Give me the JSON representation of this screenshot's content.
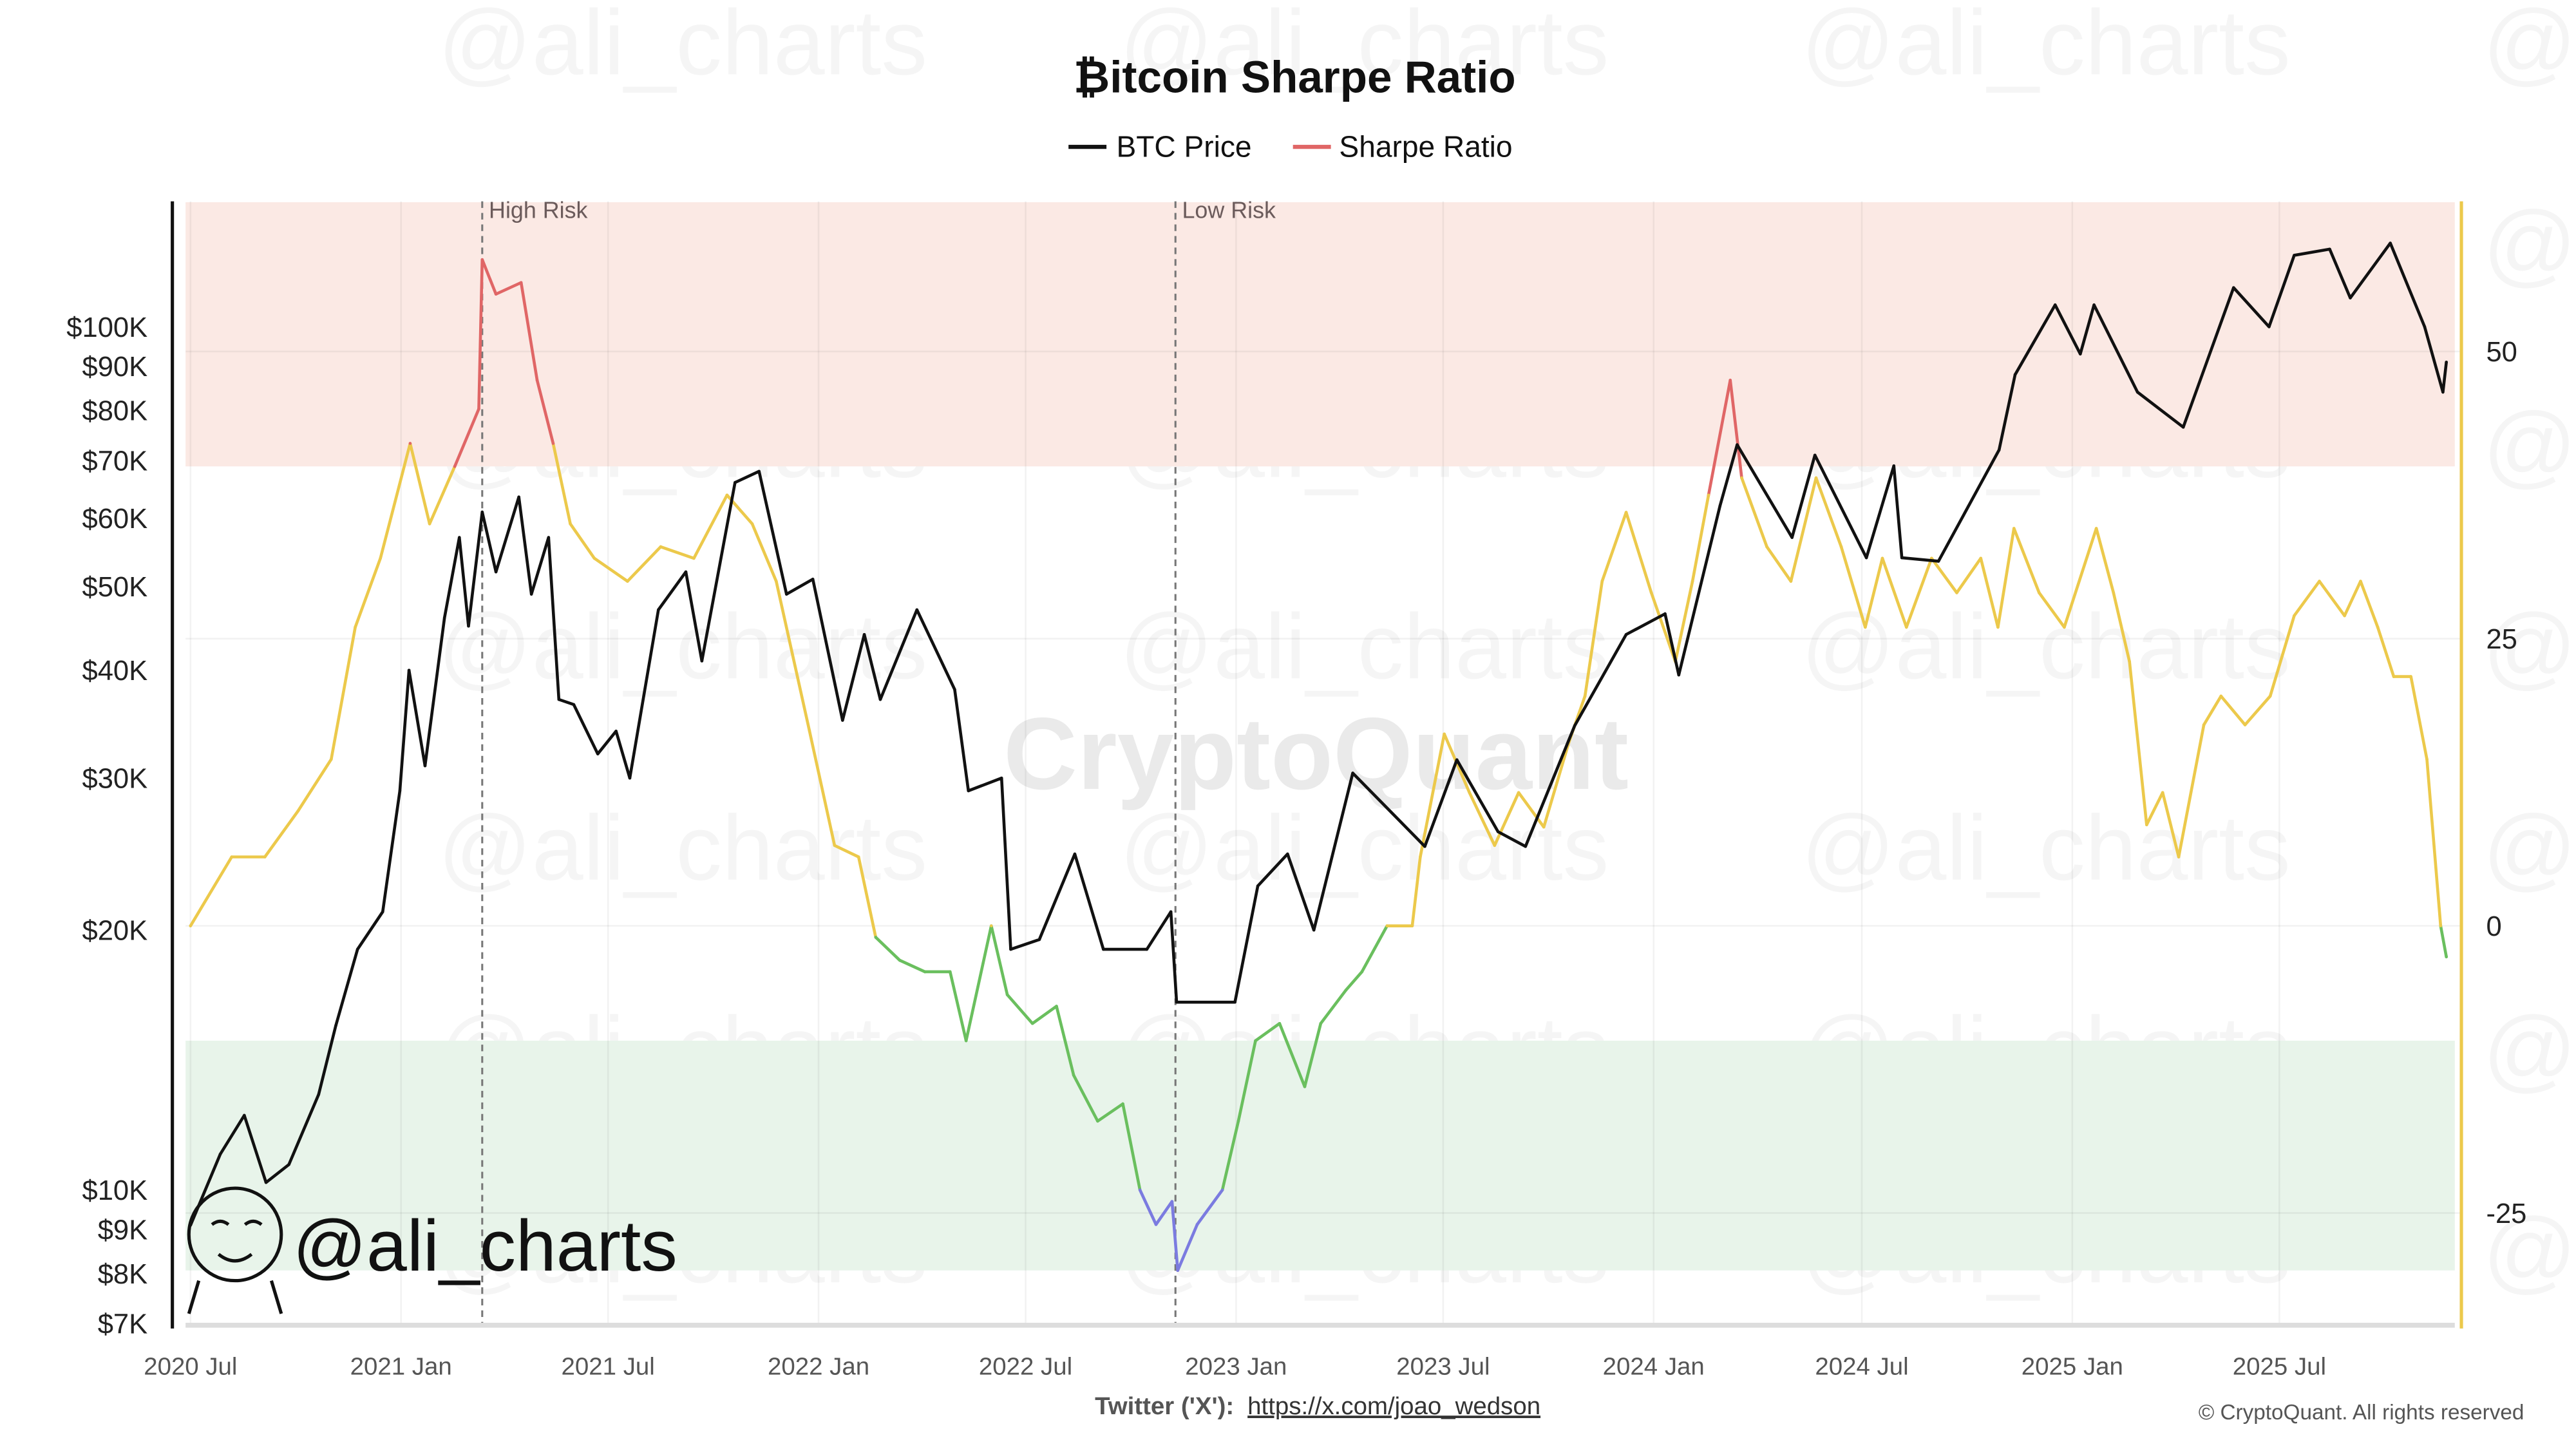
{
  "chart_data": {
    "type": "line",
    "title": "₿itcoin Sharpe Ratio",
    "legend": {
      "placement": "top-center",
      "items": [
        {
          "name": "BTC Price",
          "color": "#111111"
        },
        {
          "name": "Sharpe Ratio",
          "color": "#e06666"
        }
      ]
    },
    "x_ticks": [
      "2020 Jul",
      "2021 Jan",
      "2021 Jul",
      "2022 Jan",
      "2022 Jul",
      "2023 Jan",
      "2023 Jul",
      "2024 Jan",
      "2024 Jul",
      "2025 Jan",
      "2025 Jul"
    ],
    "x_tick_dates": [
      "2020-07-01",
      "2021-01-01",
      "2021-07-01",
      "2022-01-01",
      "2022-07-01",
      "2023-01-01",
      "2023-07-01",
      "2024-01-01",
      "2024-07-01",
      "2025-01-01",
      "2025-07-01"
    ],
    "left_axis": {
      "scale": "log",
      "range": [
        7000,
        140000
      ],
      "ticks": [
        100000,
        90000,
        80000,
        70000,
        60000,
        50000,
        40000,
        30000,
        20000,
        10000,
        9000,
        8000,
        7000
      ],
      "tick_labels": [
        "$100K",
        "$90K",
        "$80K",
        "$70K",
        "$60K",
        "$50K",
        "$40K",
        "$30K",
        "$20K",
        "$10K",
        "$9K",
        "$8K",
        "$7K"
      ]
    },
    "right_axis": {
      "scale": "linear",
      "range": [
        -35,
        63
      ],
      "ticks": [
        50,
        25,
        0,
        -25
      ],
      "tick_labels": [
        "50",
        "25",
        "0",
        "-25"
      ]
    },
    "zones": [
      {
        "kind": "high-risk",
        "from": 40,
        "to": 63,
        "color": "#fbe9e4"
      },
      {
        "kind": "low-risk",
        "from": -30,
        "to": -10,
        "color": "#e8f4ea"
      }
    ],
    "annotations": [
      {
        "label": "High Risk",
        "date": "2021-03-13"
      },
      {
        "label": "Low Risk",
        "date": "2022-11-09"
      }
    ],
    "sharpe_colors": {
      "high": "#e06666",
      "mid": "#ecc94b",
      "low": "#6abf5e",
      "extreme_low": "#7b7be0"
    },
    "series": [
      {
        "name": "BTC Price",
        "axis": "left",
        "points": [
          [
            "2020-07-01",
            9100
          ],
          [
            "2020-07-27",
            11000
          ],
          [
            "2020-08-17",
            12200
          ],
          [
            "2020-09-05",
            10200
          ],
          [
            "2020-09-25",
            10700
          ],
          [
            "2020-10-21",
            12900
          ],
          [
            "2020-11-05",
            15500
          ],
          [
            "2020-11-24",
            19000
          ],
          [
            "2020-12-16",
            21000
          ],
          [
            "2020-12-31",
            29000
          ],
          [
            "2021-01-08",
            40000
          ],
          [
            "2021-01-22",
            31000
          ],
          [
            "2021-02-08",
            46000
          ],
          [
            "2021-02-21",
            57000
          ],
          [
            "2021-03-01",
            45000
          ],
          [
            "2021-03-13",
            61000
          ],
          [
            "2021-03-25",
            52000
          ],
          [
            "2021-04-14",
            63500
          ],
          [
            "2021-04-25",
            49000
          ],
          [
            "2021-05-10",
            57000
          ],
          [
            "2021-05-19",
            37000
          ],
          [
            "2021-06-01",
            36500
          ],
          [
            "2021-06-22",
            32000
          ],
          [
            "2021-07-08",
            34000
          ],
          [
            "2021-07-20",
            30000
          ],
          [
            "2021-08-14",
            47000
          ],
          [
            "2021-09-07",
            52000
          ],
          [
            "2021-09-21",
            41000
          ],
          [
            "2021-10-20",
            66000
          ],
          [
            "2021-11-10",
            68000
          ],
          [
            "2021-12-04",
            49000
          ],
          [
            "2021-12-27",
            51000
          ],
          [
            "2022-01-22",
            35000
          ],
          [
            "2022-02-10",
            44000
          ],
          [
            "2022-02-24",
            37000
          ],
          [
            "2022-03-28",
            47000
          ],
          [
            "2022-04-30",
            38000
          ],
          [
            "2022-05-12",
            29000
          ],
          [
            "2022-06-10",
            30000
          ],
          [
            "2022-06-18",
            19000
          ],
          [
            "2022-07-13",
            19500
          ],
          [
            "2022-08-13",
            24500
          ],
          [
            "2022-09-07",
            19000
          ],
          [
            "2022-10-15",
            19000
          ],
          [
            "2022-11-05",
            21000
          ],
          [
            "2022-11-10",
            16500
          ],
          [
            "2022-12-31",
            16500
          ],
          [
            "2023-01-20",
            22500
          ],
          [
            "2023-02-15",
            24500
          ],
          [
            "2023-03-10",
            20000
          ],
          [
            "2023-04-13",
            30400
          ],
          [
            "2023-06-15",
            25000
          ],
          [
            "2023-07-13",
            31500
          ],
          [
            "2023-08-18",
            26000
          ],
          [
            "2023-09-11",
            25000
          ],
          [
            "2023-10-24",
            34500
          ],
          [
            "2023-12-08",
            44000
          ],
          [
            "2024-01-11",
            46500
          ],
          [
            "2024-01-23",
            39500
          ],
          [
            "2024-02-28",
            62000
          ],
          [
            "2024-03-14",
            73000
          ],
          [
            "2024-05-01",
            57000
          ],
          [
            "2024-05-21",
            71000
          ],
          [
            "2024-07-05",
            54000
          ],
          [
            "2024-07-29",
            69000
          ],
          [
            "2024-08-05",
            54000
          ],
          [
            "2024-09-06",
            53500
          ],
          [
            "2024-10-29",
            72000
          ],
          [
            "2024-11-12",
            88000
          ],
          [
            "2024-12-17",
            106000
          ],
          [
            "2025-01-08",
            93000
          ],
          [
            "2025-01-20",
            106000
          ],
          [
            "2025-02-27",
            84000
          ],
          [
            "2025-04-08",
            76500
          ],
          [
            "2025-05-22",
            111000
          ],
          [
            "2025-06-22",
            100000
          ],
          [
            "2025-07-14",
            121000
          ],
          [
            "2025-08-14",
            123000
          ],
          [
            "2025-09-01",
            108000
          ],
          [
            "2025-10-06",
            125000
          ],
          [
            "2025-11-05",
            100000
          ],
          [
            "2025-11-21",
            84000
          ],
          [
            "2025-11-24",
            91000
          ]
        ]
      },
      {
        "name": "Sharpe Ratio",
        "axis": "right",
        "points": [
          [
            "2020-07-01",
            0
          ],
          [
            "2020-08-06",
            6
          ],
          [
            "2020-09-04",
            6
          ],
          [
            "2020-10-03",
            10
          ],
          [
            "2020-11-01",
            14.5
          ],
          [
            "2020-11-22",
            26
          ],
          [
            "2020-12-14",
            32
          ],
          [
            "2021-01-09",
            42
          ],
          [
            "2021-01-26",
            35
          ],
          [
            "2021-02-17",
            40
          ],
          [
            "2021-03-10",
            45
          ],
          [
            "2021-03-13",
            58
          ],
          [
            "2021-03-25",
            55
          ],
          [
            "2021-04-16",
            56
          ],
          [
            "2021-04-30",
            47.5
          ],
          [
            "2021-05-14",
            42
          ],
          [
            "2021-05-29",
            35
          ],
          [
            "2021-06-19",
            32
          ],
          [
            "2021-07-18",
            30
          ],
          [
            "2021-08-16",
            33
          ],
          [
            "2021-09-14",
            32
          ],
          [
            "2021-10-13",
            37.5
          ],
          [
            "2021-11-04",
            35
          ],
          [
            "2021-11-25",
            30
          ],
          [
            "2021-12-24",
            17
          ],
          [
            "2022-01-15",
            7
          ],
          [
            "2022-02-05",
            6
          ],
          [
            "2022-02-20",
            -1
          ],
          [
            "2022-03-13",
            -3
          ],
          [
            "2022-04-04",
            -4
          ],
          [
            "2022-04-26",
            -4
          ],
          [
            "2022-05-10",
            -10
          ],
          [
            "2022-06-01",
            0
          ],
          [
            "2022-06-15",
            -6
          ],
          [
            "2022-07-07",
            -8.5
          ],
          [
            "2022-07-28",
            -7
          ],
          [
            "2022-08-12",
            -13
          ],
          [
            "2022-09-02",
            -17
          ],
          [
            "2022-09-24",
            -15.5
          ],
          [
            "2022-10-09",
            -23
          ],
          [
            "2022-10-23",
            -26
          ],
          [
            "2022-11-06",
            -24
          ],
          [
            "2022-11-11",
            -30
          ],
          [
            "2022-11-28",
            -26
          ],
          [
            "2022-12-20",
            -23
          ],
          [
            "2023-01-03",
            -17
          ],
          [
            "2023-01-18",
            -10
          ],
          [
            "2023-02-08",
            -8.5
          ],
          [
            "2023-03-02",
            -14
          ],
          [
            "2023-03-16",
            -8.5
          ],
          [
            "2023-04-07",
            -5.6
          ],
          [
            "2023-04-21",
            -4
          ],
          [
            "2023-05-13",
            0
          ],
          [
            "2023-06-04",
            0
          ],
          [
            "2023-06-11",
            6
          ],
          [
            "2023-07-02",
            16.7
          ],
          [
            "2023-07-24",
            11.6
          ],
          [
            "2023-08-15",
            7
          ],
          [
            "2023-09-05",
            11.6
          ],
          [
            "2023-09-27",
            8.6
          ],
          [
            "2023-10-19",
            16
          ],
          [
            "2023-11-02",
            20
          ],
          [
            "2023-11-17",
            30
          ],
          [
            "2023-12-08",
            36
          ],
          [
            "2023-12-30",
            29
          ],
          [
            "2024-01-20",
            23
          ],
          [
            "2024-02-04",
            30
          ],
          [
            "2024-02-18",
            37.5
          ],
          [
            "2024-03-08",
            47.5
          ],
          [
            "2024-03-18",
            39
          ],
          [
            "2024-04-09",
            33
          ],
          [
            "2024-04-30",
            30
          ],
          [
            "2024-05-22",
            39
          ],
          [
            "2024-06-13",
            33
          ],
          [
            "2024-07-04",
            26
          ],
          [
            "2024-07-19",
            32
          ],
          [
            "2024-08-09",
            26
          ],
          [
            "2024-08-31",
            32
          ],
          [
            "2024-09-22",
            29
          ],
          [
            "2024-10-13",
            32
          ],
          [
            "2024-10-28",
            26
          ],
          [
            "2024-11-11",
            34.6
          ],
          [
            "2024-12-03",
            29
          ],
          [
            "2024-12-25",
            26
          ],
          [
            "2025-01-22",
            34.6
          ],
          [
            "2025-02-06",
            29
          ],
          [
            "2025-02-20",
            23
          ],
          [
            "2025-03-07",
            8.8
          ],
          [
            "2025-03-21",
            11.6
          ],
          [
            "2025-04-04",
            6
          ],
          [
            "2025-04-26",
            17.5
          ],
          [
            "2025-05-11",
            20
          ],
          [
            "2025-06-01",
            17.5
          ],
          [
            "2025-06-23",
            20
          ],
          [
            "2025-07-14",
            27
          ],
          [
            "2025-08-05",
            30
          ],
          [
            "2025-08-27",
            27
          ],
          [
            "2025-09-10",
            30
          ],
          [
            "2025-09-25",
            26
          ],
          [
            "2025-10-09",
            21.7
          ],
          [
            "2025-10-24",
            21.7
          ],
          [
            "2025-11-07",
            14.5
          ],
          [
            "2025-11-19",
            0
          ],
          [
            "2025-11-24",
            -2.7
          ]
        ]
      }
    ]
  },
  "footer": {
    "twitter_label": "Twitter ('X'):",
    "twitter_link": "https://x.com/joao_wedson",
    "copyright": "© CryptoQuant. All rights reserved"
  },
  "watermarks": {
    "main": "CryptoQuant",
    "repeat": "@ali_charts",
    "logo_text": "@ali_charts"
  }
}
